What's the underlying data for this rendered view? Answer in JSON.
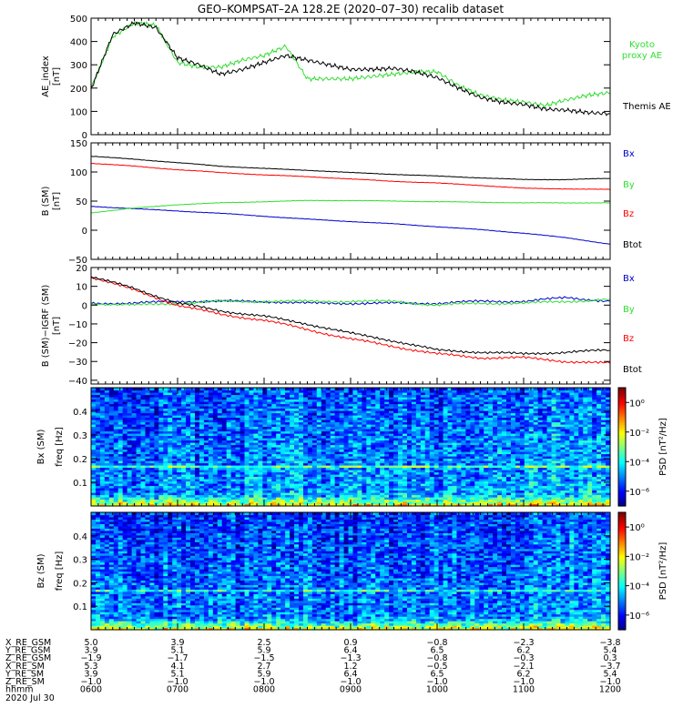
{
  "page": {
    "title": "GEO–KOMPSAT–2A 128.2E (2020–07–30) recalib dataset"
  },
  "colors": {
    "black": "#000000",
    "red": "#ff0000",
    "green": "#2ee02e",
    "blue": "#0000cc",
    "kyoto_green": "#33dd33"
  },
  "chart_data": [
    {
      "type": "line",
      "panel": "ae",
      "ylabel": "AE_index",
      "yunit": "[nT]",
      "ylim": [
        0,
        500
      ],
      "yticks": [
        0,
        100,
        200,
        300,
        400,
        500
      ],
      "ytick_labels": [
        "0",
        "100",
        "200",
        "300",
        "400",
        "500"
      ],
      "x": [
        6.0,
        6.25,
        6.5,
        6.75,
        7.0,
        7.25,
        7.5,
        7.75,
        8.0,
        8.25,
        8.5,
        8.75,
        9.0,
        9.25,
        9.5,
        9.75,
        10.0,
        10.25,
        10.5,
        10.75,
        11.0,
        11.25,
        11.5,
        11.75,
        12.0
      ],
      "series": [
        {
          "name": "Kyoto proxy AE",
          "color": "#33dd33",
          "values": [
            200,
            420,
            480,
            470,
            310,
            290,
            290,
            320,
            340,
            380,
            240,
            240,
            240,
            250,
            260,
            270,
            270,
            210,
            170,
            150,
            140,
            125,
            150,
            170,
            180
          ]
        },
        {
          "name": "Themis AE",
          "color": "#000000",
          "values": [
            195,
            430,
            480,
            460,
            330,
            300,
            260,
            280,
            310,
            340,
            320,
            300,
            280,
            280,
            285,
            270,
            245,
            200,
            160,
            140,
            130,
            110,
            105,
            95,
            90
          ]
        }
      ],
      "legend": [
        {
          "text": "Kyoto",
          "color": "#33dd33"
        },
        {
          "text": "proxy AE",
          "color": "#33dd33"
        },
        {
          "text": "Themis AE",
          "color": "#000000"
        }
      ]
    },
    {
      "type": "line",
      "panel": "b",
      "ylabel": "B (SM)",
      "yunit": "[nT]",
      "ylim": [
        -50,
        150
      ],
      "yticks": [
        -50,
        0,
        50,
        100,
        150
      ],
      "ytick_labels": [
        "−50",
        "0",
        "50",
        "100",
        "150"
      ],
      "x": [
        6.0,
        6.5,
        7.0,
        7.5,
        8.0,
        8.5,
        9.0,
        9.5,
        10.0,
        10.5,
        11.0,
        11.5,
        12.0
      ],
      "series": [
        {
          "name": "Bx",
          "color": "#0000cc",
          "values": [
            41,
            37,
            33,
            29,
            24,
            19,
            15,
            11,
            6,
            1,
            -5,
            -13,
            -24
          ]
        },
        {
          "name": "By",
          "color": "#2ee02e",
          "values": [
            30,
            38,
            44,
            47,
            49,
            51,
            51,
            50,
            49,
            48,
            47,
            47,
            47
          ]
        },
        {
          "name": "Bz",
          "color": "#ff0000",
          "values": [
            115,
            110,
            104,
            99,
            95,
            92,
            88,
            84,
            81,
            77,
            72,
            71,
            70
          ]
        },
        {
          "name": "Btot",
          "color": "#000000",
          "values": [
            127,
            122,
            116,
            110,
            106,
            103,
            99,
            96,
            93,
            90,
            87,
            87,
            89
          ]
        }
      ],
      "legend": [
        {
          "text": "Bx",
          "color": "#0000cc"
        },
        {
          "text": "By",
          "color": "#2ee02e"
        },
        {
          "text": "Bz",
          "color": "#ff0000"
        },
        {
          "text": "Btot",
          "color": "#000000"
        }
      ]
    },
    {
      "type": "line",
      "panel": "db",
      "ylabel": "B (SM)−IGRF (SM)",
      "yunit": "[nT]",
      "ylim": [
        -42,
        20
      ],
      "yticks": [
        -40,
        -30,
        -20,
        -10,
        0,
        10,
        20
      ],
      "ytick_labels": [
        "−40",
        "−30",
        "−20",
        "−10",
        "0",
        "10",
        "20"
      ],
      "x": [
        6.0,
        6.5,
        7.0,
        7.5,
        8.0,
        8.5,
        9.0,
        9.5,
        10.0,
        10.5,
        11.0,
        11.5,
        12.0
      ],
      "series": [
        {
          "name": "Bx",
          "color": "#0000cc",
          "values": [
            1,
            1,
            2,
            2,
            2,
            1,
            1,
            1,
            1,
            2,
            2,
            4,
            2
          ]
        },
        {
          "name": "By",
          "color": "#2ee02e",
          "values": [
            1,
            0,
            1,
            2,
            2,
            2,
            2,
            2,
            0,
            1,
            1,
            2,
            3
          ]
        },
        {
          "name": "Bz",
          "color": "#ff0000",
          "values": [
            15,
            8,
            0,
            -5,
            -8,
            -13,
            -18,
            -22,
            -26,
            -28,
            -28,
            -30,
            -31
          ]
        },
        {
          "name": "Btot",
          "color": "#000000",
          "values": [
            15,
            9,
            1,
            -3,
            -6,
            -10,
            -15,
            -19,
            -24,
            -25,
            -26,
            -25,
            -24
          ]
        }
      ],
      "legend": [
        {
          "text": "Bx",
          "color": "#0000cc"
        },
        {
          "text": "By",
          "color": "#2ee02e"
        },
        {
          "text": "Bz",
          "color": "#ff0000"
        },
        {
          "text": "Btot",
          "color": "#000000"
        }
      ]
    },
    {
      "type": "heatmap",
      "panel": "spec_bx",
      "ylabel": "Bx (SM)",
      "ylabel2": "freq [Hz]",
      "ylim": [
        0,
        0.5
      ],
      "yticks": [
        0.1,
        0.2,
        0.3,
        0.4
      ],
      "ytick_labels": [
        "0.1",
        "0.2",
        "0.3",
        "0.4"
      ],
      "colorbar_label": "PSD [nT²/Hz]",
      "colorbar_ticks": [
        "10⁰",
        "10⁻²",
        "10⁻⁴",
        "10⁻⁶"
      ],
      "colorbar_range_log10": [
        -7,
        1
      ]
    },
    {
      "type": "heatmap",
      "panel": "spec_bz",
      "ylabel": "Bz (SM)",
      "ylabel2": "freq [Hz]",
      "ylim": [
        0,
        0.5
      ],
      "yticks": [
        0.1,
        0.2,
        0.3,
        0.4
      ],
      "ytick_labels": [
        "0.1",
        "0.2",
        "0.3",
        "0.4"
      ],
      "colorbar_label": "PSD [nT²/Hz]",
      "colorbar_ticks": [
        "10⁰",
        "10⁻²",
        "10⁻⁴",
        "10⁻⁶"
      ],
      "colorbar_range_log10": [
        -7,
        1
      ]
    }
  ],
  "xaxis": {
    "xlim": [
      6.0,
      12.0
    ],
    "major_ticks": [
      6.0,
      7.0,
      8.0,
      9.0,
      10.0,
      11.0,
      12.0
    ],
    "rows": [
      {
        "label": "X_RE_GSM",
        "values": [
          "5.0",
          "3.9",
          "2.5",
          "0.9",
          "−0.8",
          "−2.3",
          "−3.8"
        ]
      },
      {
        "label": "Y_RE_GSM",
        "values": [
          "3.9",
          "5.1",
          "5.9",
          "6.4",
          "6.5",
          "6.2",
          "5.4"
        ]
      },
      {
        "label": "Z_RE_GSM",
        "values": [
          "−1.9",
          "−1.7",
          "−1.5",
          "−1.3",
          "−0.8",
          "−0.3",
          "0.3"
        ]
      },
      {
        "label": "X_RE_SM",
        "values": [
          "5.3",
          "4.1",
          "2.7",
          "1.2",
          "−0.5",
          "−2.1",
          "−3.7"
        ]
      },
      {
        "label": "Y_RE_SM",
        "values": [
          "3.9",
          "5.1",
          "5.9",
          "6.4",
          "6.5",
          "6.2",
          "5.4"
        ]
      },
      {
        "label": "Z_RE_SM",
        "values": [
          "−1.0",
          "−1.0",
          "−1.0",
          "−1.0",
          "−1.0",
          "−1.0",
          "−1.0"
        ]
      },
      {
        "label": "hhmm",
        "values": [
          "0600",
          "0700",
          "0800",
          "0900",
          "1000",
          "1100",
          "1200"
        ]
      }
    ],
    "date": "2020 Jul 30"
  }
}
